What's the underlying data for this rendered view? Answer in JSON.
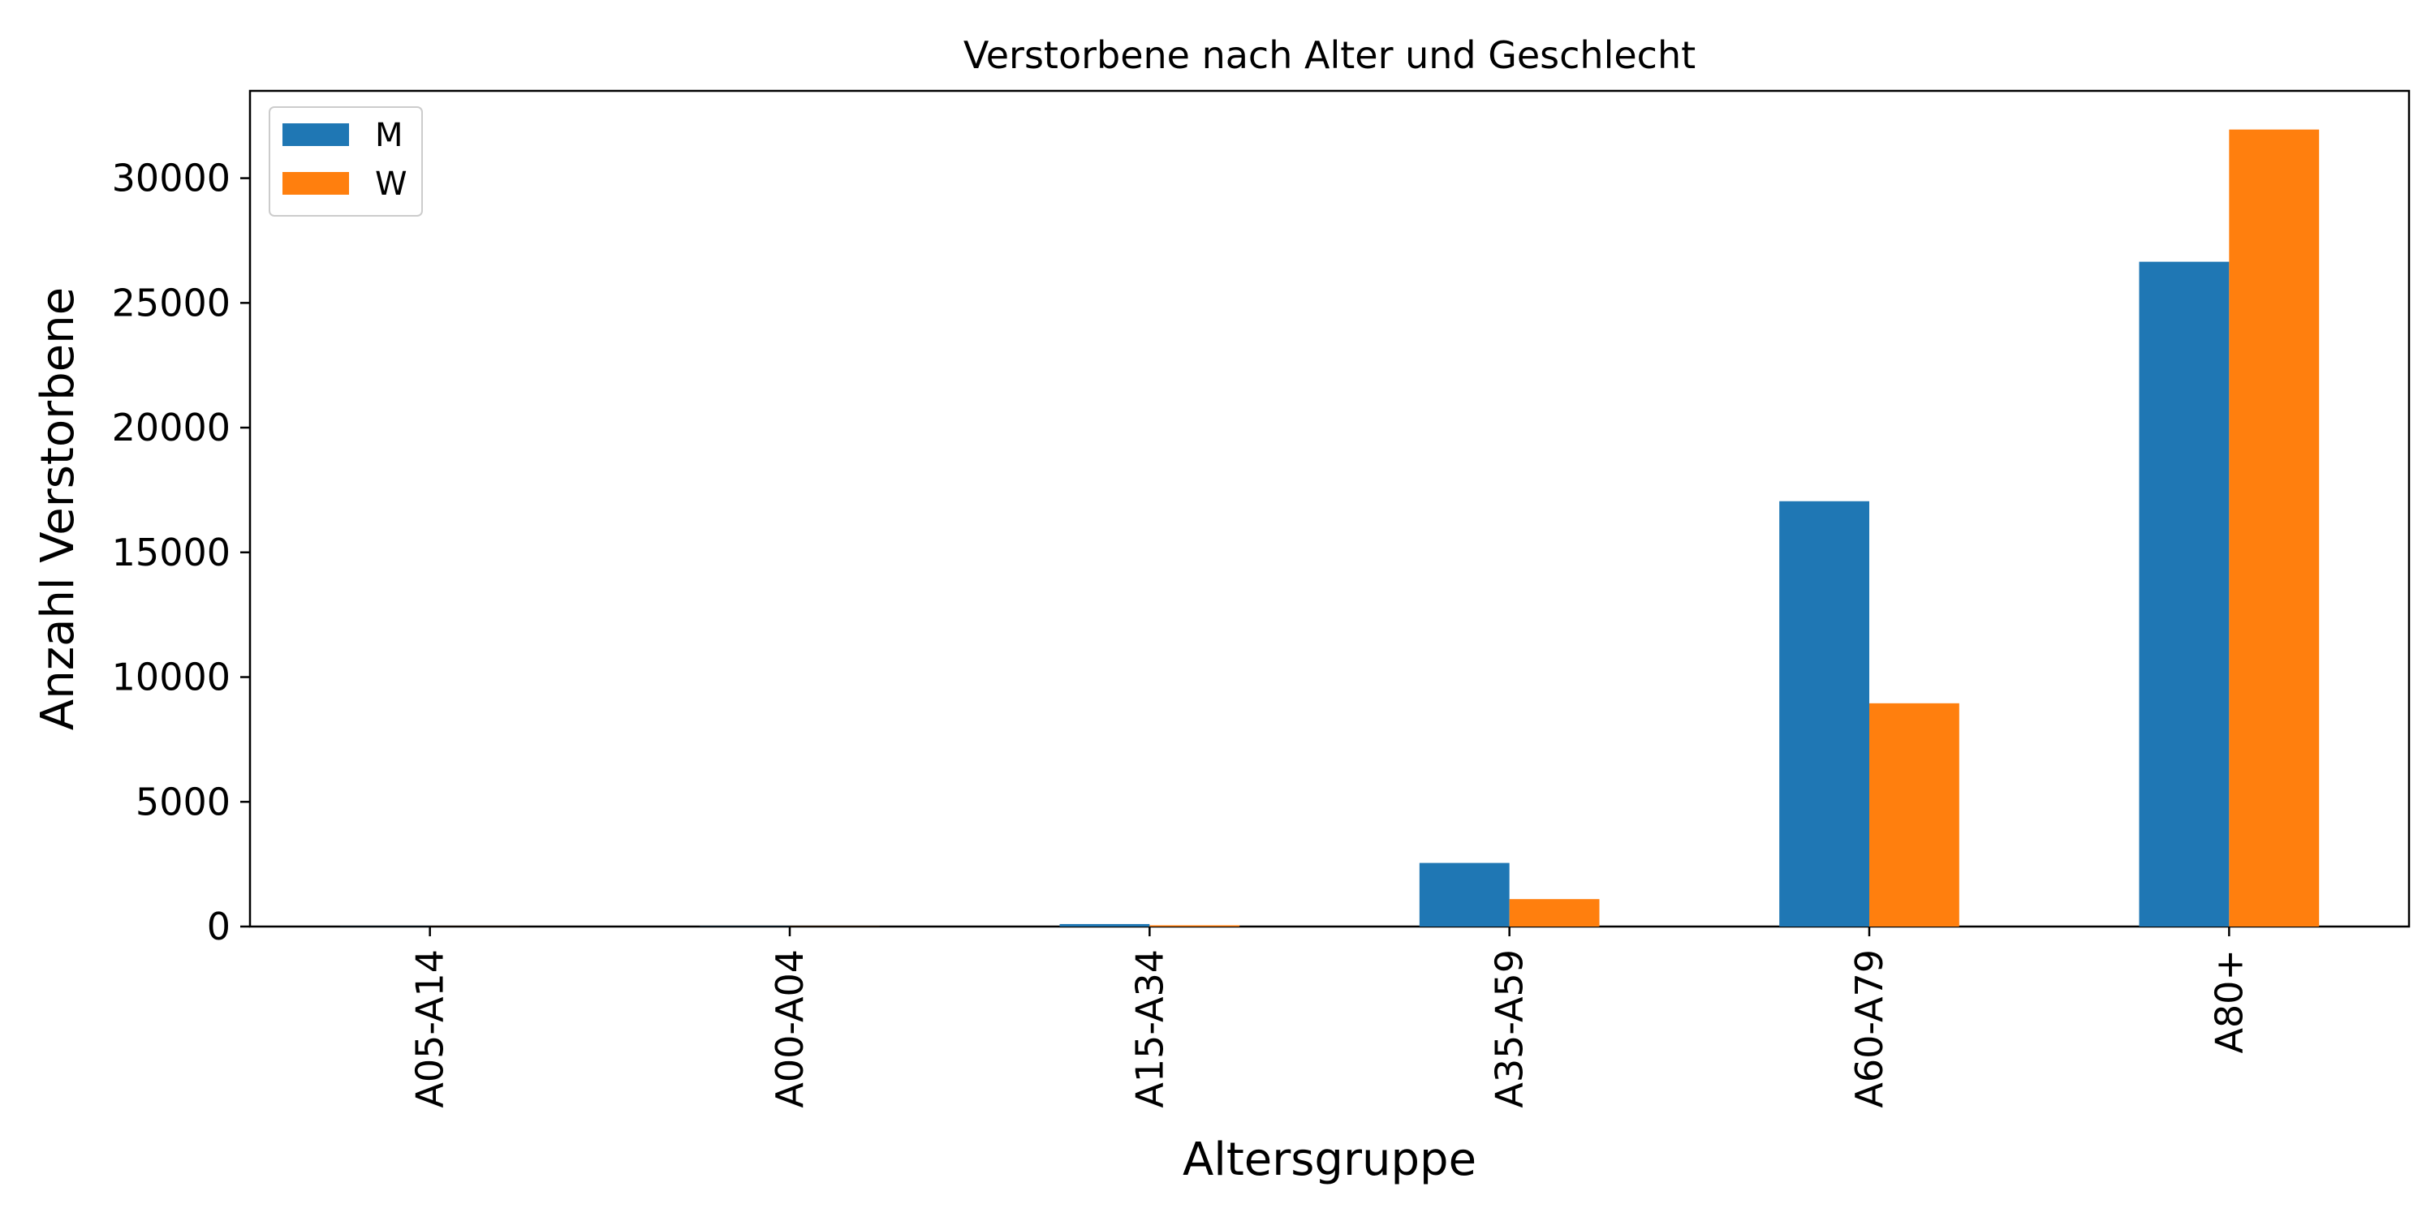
{
  "chart_data": {
    "type": "bar",
    "title": "Verstorbene nach Alter und Geschlecht",
    "xlabel": "Altersgruppe",
    "ylabel": "Anzahl Verstorbene",
    "categories": [
      "A05-A14",
      "A00-A04",
      "A15-A34",
      "A35-A59",
      "A60-A79",
      "A80+"
    ],
    "series": [
      {
        "name": "M",
        "color": "#1f77b4",
        "values": [
          5,
          8,
          100,
          2550,
          17050,
          26650
        ]
      },
      {
        "name": "W",
        "color": "#ff7f0e",
        "values": [
          3,
          5,
          50,
          1100,
          8950,
          31950
        ]
      }
    ],
    "ylim": [
      0,
      33500
    ],
    "yticks": [
      0,
      5000,
      10000,
      15000,
      20000,
      25000,
      30000
    ],
    "grid": false,
    "legend": "top-left"
  }
}
